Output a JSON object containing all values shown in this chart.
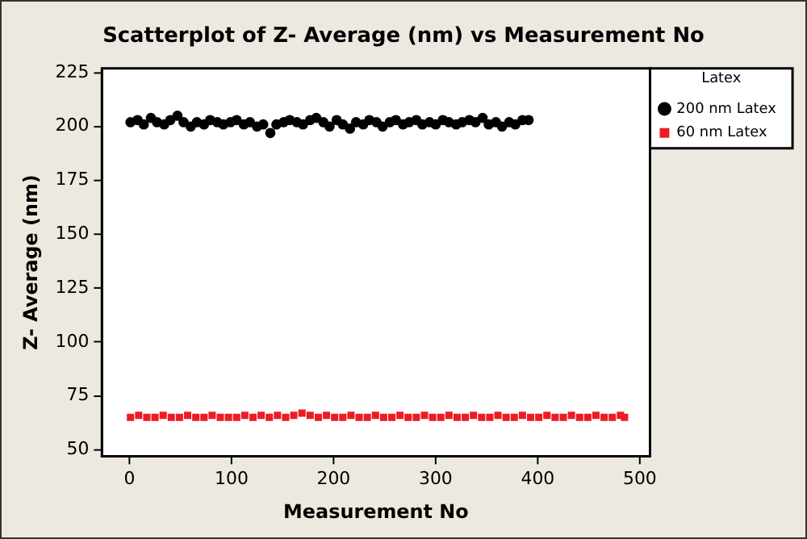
{
  "chart_data": {
    "type": "scatter",
    "title": "Scatterplot of Z- Average (nm) vs Measurement No",
    "xlabel": "Measurement No",
    "ylabel": "Z- Average (nm)",
    "legend_title": "Latex",
    "legend": "top right",
    "grid": false,
    "xlim": [
      -27,
      510
    ],
    "xticks": [
      0,
      100,
      200,
      300,
      400,
      500
    ],
    "ylim": [
      47,
      227
    ],
    "yticks": [
      50,
      75,
      100,
      125,
      150,
      175,
      200,
      225
    ],
    "series": [
      {
        "name": "200 nm Latex",
        "color": "#000000",
        "marker": "circle",
        "x": [
          1,
          8,
          14,
          21,
          27,
          34,
          40,
          47,
          53,
          60,
          66,
          73,
          79,
          86,
          92,
          99,
          105,
          112,
          118,
          125,
          131,
          138,
          144,
          151,
          157,
          164,
          170,
          177,
          183,
          190,
          196,
          203,
          209,
          216,
          222,
          229,
          235,
          242,
          248,
          255,
          261,
          268,
          274,
          281,
          287,
          294,
          300,
          307,
          313,
          320,
          326,
          333,
          339,
          346,
          352,
          359,
          365,
          372,
          378,
          385,
          391
        ],
        "values": [
          202,
          203,
          201,
          204,
          202,
          201,
          203,
          205,
          202,
          200,
          202,
          201,
          203,
          202,
          201,
          202,
          203,
          201,
          202,
          200,
          201,
          197,
          201,
          202,
          203,
          202,
          201,
          203,
          204,
          202,
          200,
          203,
          201,
          199,
          202,
          201,
          203,
          202,
          200,
          202,
          203,
          201,
          202,
          203,
          201,
          202,
          201,
          203,
          202,
          201,
          202,
          203,
          202,
          204,
          201,
          202,
          200,
          202,
          201,
          203,
          203
        ]
      },
      {
        "name": "60 nm Latex",
        "color": "#ed1c24",
        "marker": "square",
        "x": [
          1,
          9,
          17,
          25,
          33,
          41,
          49,
          57,
          65,
          73,
          81,
          89,
          97,
          105,
          113,
          121,
          129,
          137,
          145,
          153,
          161,
          169,
          177,
          185,
          193,
          201,
          209,
          217,
          225,
          233,
          241,
          249,
          257,
          265,
          273,
          281,
          289,
          297,
          305,
          313,
          321,
          329,
          337,
          345,
          353,
          361,
          369,
          377,
          385,
          393,
          401,
          409,
          417,
          425,
          433,
          441,
          449,
          457,
          465,
          473,
          481,
          485
        ],
        "values": [
          65,
          66,
          65,
          65,
          66,
          65,
          65,
          66,
          65,
          65,
          66,
          65,
          65,
          65,
          66,
          65,
          66,
          65,
          66,
          65,
          66,
          67,
          66,
          65,
          66,
          65,
          65,
          66,
          65,
          65,
          66,
          65,
          65,
          66,
          65,
          65,
          66,
          65,
          65,
          66,
          65,
          65,
          66,
          65,
          65,
          66,
          65,
          65,
          66,
          65,
          65,
          66,
          65,
          65,
          66,
          65,
          65,
          66,
          65,
          65,
          66,
          65
        ]
      }
    ]
  }
}
